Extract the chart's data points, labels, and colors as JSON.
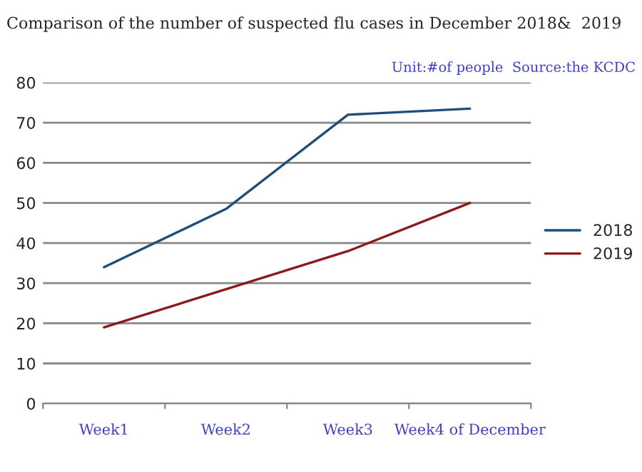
{
  "chart_data": {
    "type": "line",
    "title": "Comparison of the number of suspected flu cases in December 2018&  2019",
    "annotations": [
      "Unit:#of people  Source:the KCDC"
    ],
    "categories": [
      "Week1",
      "Week2",
      "Week3",
      "Week4 of December"
    ],
    "series": [
      {
        "name": "2018",
        "color": "#1f4e79",
        "values": [
          34,
          48.5,
          72,
          73.5
        ]
      },
      {
        "name": "2019",
        "color": "#8b1a1a",
        "values": [
          19,
          28.5,
          38,
          50
        ]
      }
    ],
    "ylim": [
      0,
      80
    ],
    "yticks": [
      0,
      10,
      20,
      30,
      40,
      50,
      60,
      70,
      80
    ],
    "grid": "y",
    "legend": "right"
  }
}
